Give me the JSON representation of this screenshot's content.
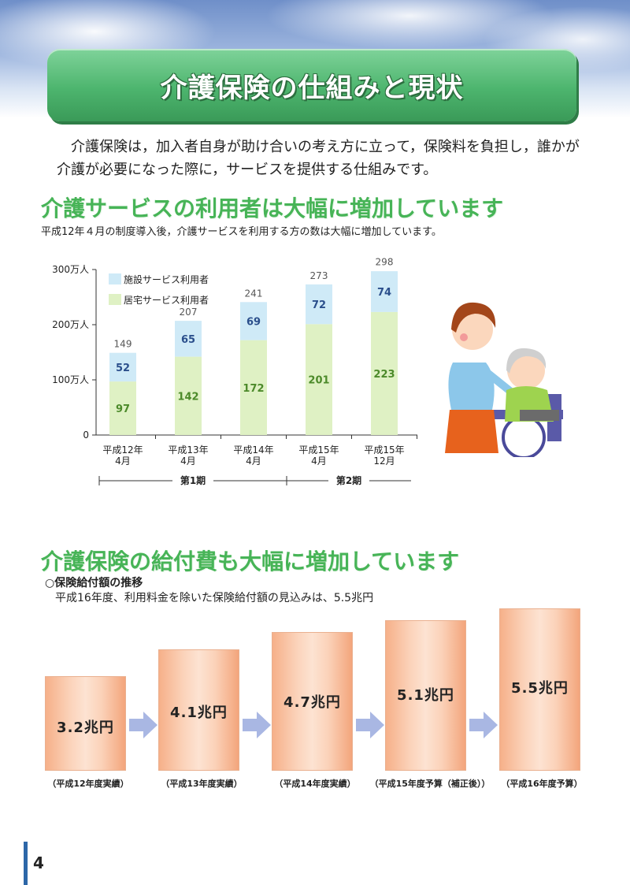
{
  "title": "介護保険の仕組みと現状",
  "intro": "介護保険は，加入者自身が助け合いの考え方に立って，保険料を負担し，誰かが介護が必要になった際に，サービスを提供する仕組みです。",
  "section1": {
    "heading": "介護サービスの利用者は大幅に増加しています",
    "subtext": "平成12年４月の制度導入後，介護サービスを利用する方の数は大幅に増加しています。"
  },
  "chart_data": {
    "type": "bar",
    "stacked": true,
    "categories": [
      "平成12年\n4月",
      "平成13年\n4月",
      "平成14年\n4月",
      "平成15年\n4月",
      "平成15年\n12月"
    ],
    "series": [
      {
        "name": "居宅サービス利用者",
        "values": [
          97,
          142,
          172,
          201,
          223
        ],
        "color": "#dff1c4",
        "label_color": "#4c8a2a"
      },
      {
        "name": "施設サービス利用者",
        "values": [
          52,
          65,
          69,
          72,
          74
        ],
        "color": "#cfeaf7",
        "label_color": "#2b4f8c"
      }
    ],
    "totals": [
      149,
      207,
      241,
      273,
      298
    ],
    "ylim": [
      0,
      300
    ],
    "yticks": [
      {
        "value": 0,
        "label": "0"
      },
      {
        "value": 100,
        "label": "100万人"
      },
      {
        "value": 200,
        "label": "200万人"
      },
      {
        "value": 300,
        "label": "300万人"
      }
    ],
    "legend_position": "top-left",
    "periods": [
      {
        "label": "第1期",
        "from": 0,
        "to": 3
      },
      {
        "label": "第2期",
        "from": 3,
        "to": 5
      }
    ]
  },
  "section2": {
    "heading": "介護保険の給付費も大幅に増加しています",
    "sub": "○保険給付額の推移",
    "note": "平成16年度、利用料金を除いた保険給付額の見込みは、5.5兆円",
    "items": [
      {
        "value": "3.2兆円",
        "label": "（平成12年度実績）",
        "amount": 3.2
      },
      {
        "value": "4.1兆円",
        "label": "（平成13年度実績）",
        "amount": 4.1
      },
      {
        "value": "4.7兆円",
        "label": "（平成14年度実績）",
        "amount": 4.7
      },
      {
        "value": "5.1兆円",
        "label": "（平成15年度予算（補正後））",
        "amount": 5.1
      },
      {
        "value": "5.5兆円",
        "label": "（平成16年度予算）",
        "amount": 5.5
      }
    ]
  },
  "colors": {
    "heading_green": "#47b457",
    "title_green": "#4db56e",
    "arrow_blue": "#a9b7e3",
    "page_bar": "#2d67a8"
  },
  "page_number": "4"
}
